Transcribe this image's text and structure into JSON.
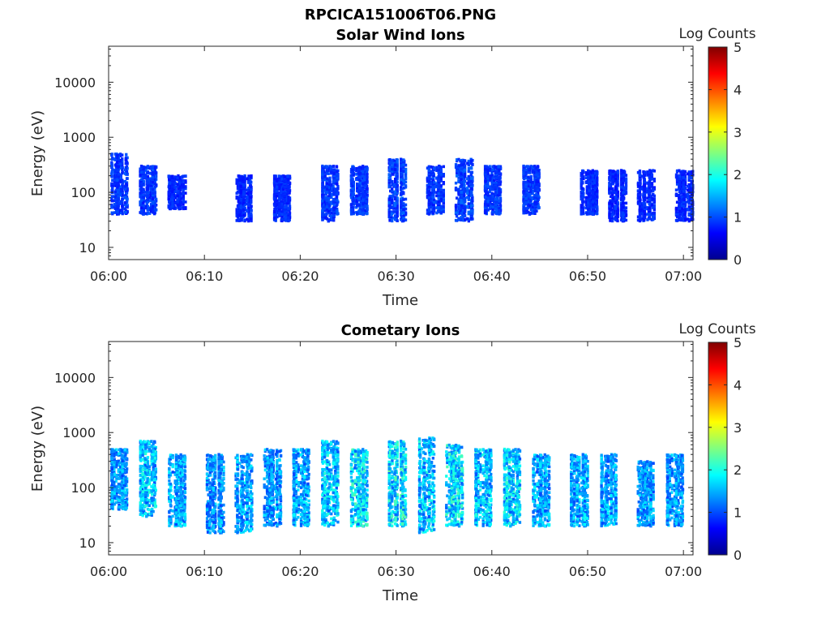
{
  "figure_title": "RPCICA151006T06.PNG",
  "colorbar_label": "Log Counts",
  "colormap": "jet",
  "chart_data": [
    {
      "type": "heatmap",
      "title": "Solar Wind Ions",
      "xlabel": "Time",
      "ylabel": "Energy (eV)",
      "x_range": [
        "06:00",
        "07:01"
      ],
      "x_ticks": [
        "06:00",
        "06:10",
        "06:20",
        "06:30",
        "06:40",
        "06:50",
        "07:00"
      ],
      "y_scale": "log",
      "y_range": [
        6,
        45000
      ],
      "y_ticks": [
        "10",
        "100",
        "1000",
        "10000"
      ],
      "color_range": [
        0,
        5
      ],
      "color_ticks": [
        "0",
        "1",
        "2",
        "3",
        "4",
        "5"
      ],
      "bursts": [
        {
          "t": "06:01",
          "e_low": 40,
          "e_high": 500,
          "level": 0.5
        },
        {
          "t": "06:04",
          "e_low": 40,
          "e_high": 300,
          "level": 0.5
        },
        {
          "t": "06:07",
          "e_low": 50,
          "e_high": 200,
          "level": 0.4
        },
        {
          "t": "06:14",
          "e_low": 30,
          "e_high": 200,
          "level": 0.4
        },
        {
          "t": "06:18",
          "e_low": 30,
          "e_high": 200,
          "level": 0.4
        },
        {
          "t": "06:23",
          "e_low": 30,
          "e_high": 300,
          "level": 0.5
        },
        {
          "t": "06:26",
          "e_low": 40,
          "e_high": 300,
          "level": 0.5
        },
        {
          "t": "06:30",
          "e_low": 30,
          "e_high": 400,
          "level": 0.6
        },
        {
          "t": "06:34",
          "e_low": 40,
          "e_high": 300,
          "level": 0.5
        },
        {
          "t": "06:37",
          "e_low": 30,
          "e_high": 400,
          "level": 0.6
        },
        {
          "t": "06:40",
          "e_low": 40,
          "e_high": 300,
          "level": 0.5
        },
        {
          "t": "06:44",
          "e_low": 40,
          "e_high": 300,
          "level": 0.5
        },
        {
          "t": "06:50",
          "e_low": 40,
          "e_high": 250,
          "level": 0.4
        },
        {
          "t": "06:53",
          "e_low": 30,
          "e_high": 250,
          "level": 0.4
        },
        {
          "t": "06:56",
          "e_low": 30,
          "e_high": 250,
          "level": 0.4
        },
        {
          "t": "07:00",
          "e_low": 30,
          "e_high": 250,
          "level": 0.4
        }
      ]
    },
    {
      "type": "heatmap",
      "title": "Cometary Ions",
      "xlabel": "Time",
      "ylabel": "Energy (eV)",
      "x_range": [
        "06:00",
        "07:01"
      ],
      "x_ticks": [
        "06:00",
        "06:10",
        "06:20",
        "06:30",
        "06:40",
        "06:50",
        "07:00"
      ],
      "y_scale": "log",
      "y_range": [
        6,
        45000
      ],
      "y_ticks": [
        "10",
        "100",
        "1000",
        "10000"
      ],
      "color_range": [
        0,
        5
      ],
      "color_ticks": [
        "0",
        "1",
        "2",
        "3",
        "4",
        "5"
      ],
      "bursts": [
        {
          "t": "06:01",
          "e_low": 40,
          "e_high": 500,
          "level": 1.2
        },
        {
          "t": "06:04",
          "e_low": 30,
          "e_high": 700,
          "level": 1.5
        },
        {
          "t": "06:07",
          "e_low": 20,
          "e_high": 400,
          "level": 1.3
        },
        {
          "t": "06:11",
          "e_low": 15,
          "e_high": 400,
          "level": 1.2
        },
        {
          "t": "06:14",
          "e_low": 15,
          "e_high": 400,
          "level": 1.3
        },
        {
          "t": "06:17",
          "e_low": 20,
          "e_high": 500,
          "level": 1.2
        },
        {
          "t": "06:20",
          "e_low": 20,
          "e_high": 500,
          "level": 1.3
        },
        {
          "t": "06:23",
          "e_low": 20,
          "e_high": 700,
          "level": 1.5
        },
        {
          "t": "06:26",
          "e_low": 20,
          "e_high": 500,
          "level": 1.7
        },
        {
          "t": "06:30",
          "e_low": 20,
          "e_high": 700,
          "level": 1.8
        },
        {
          "t": "06:33",
          "e_low": 15,
          "e_high": 800,
          "level": 1.5
        },
        {
          "t": "06:36",
          "e_low": 20,
          "e_high": 600,
          "level": 1.7
        },
        {
          "t": "06:39",
          "e_low": 20,
          "e_high": 500,
          "level": 1.5
        },
        {
          "t": "06:42",
          "e_low": 20,
          "e_high": 500,
          "level": 1.6
        },
        {
          "t": "06:45",
          "e_low": 20,
          "e_high": 400,
          "level": 1.3
        },
        {
          "t": "06:49",
          "e_low": 20,
          "e_high": 400,
          "level": 1.4
        },
        {
          "t": "06:52",
          "e_low": 20,
          "e_high": 400,
          "level": 1.3
        },
        {
          "t": "06:56",
          "e_low": 20,
          "e_high": 300,
          "level": 1.2
        },
        {
          "t": "06:59",
          "e_low": 20,
          "e_high": 400,
          "level": 1.2
        }
      ]
    }
  ]
}
